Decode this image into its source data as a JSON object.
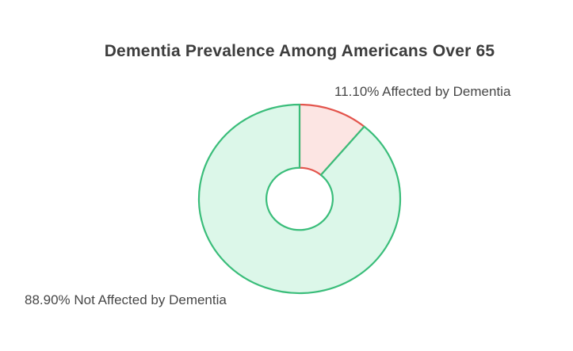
{
  "chart": {
    "title": "Dementia Prevalence Among Americans Over 65",
    "outside_labels": {
      "affected": "11.10% Affected by Dementia",
      "not_affected": "88.90% Not Affected by Dementia"
    }
  },
  "chart_data": {
    "type": "pie",
    "subtype": "donut",
    "title": "Dementia Prevalence Among Americans Over 65",
    "categories": [
      "Affected by Dementia",
      "Not Affected by Dementia"
    ],
    "values": [
      11.1,
      88.9
    ],
    "value_labels": [
      "11.10%",
      "88.90%"
    ],
    "slice_colors": [
      {
        "fill": "#fce5e3",
        "stroke": "#e3544c"
      },
      {
        "fill": "#dcf7e9",
        "stroke": "#3abd7a"
      }
    ],
    "hole_ratio": 0.33,
    "start_angle": "12 o'clock",
    "direction": "clockwise",
    "legend": "none",
    "label_position": "outside",
    "title_color": "#3d3d3d",
    "label_color": "#474747",
    "background": "#ffffff"
  }
}
